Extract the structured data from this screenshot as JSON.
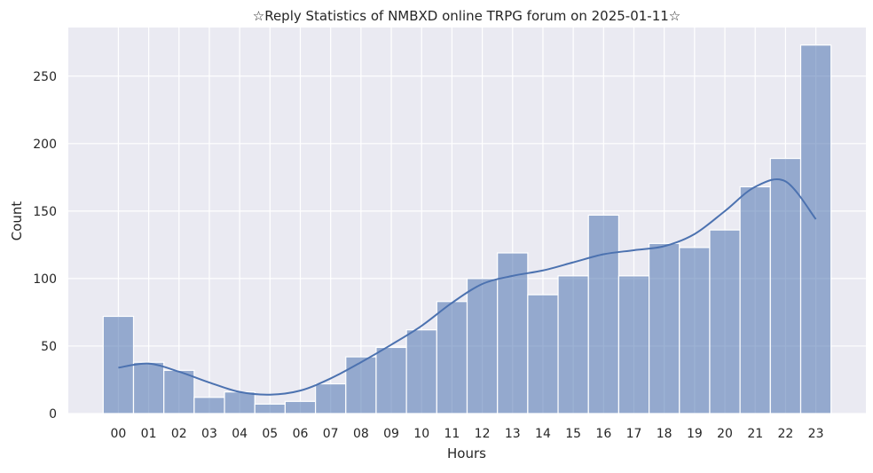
{
  "chart_data": {
    "type": "bar",
    "title": "☆Reply Statistics of NMBXD online TRPG forum on 2025-01-11☆",
    "xlabel": "Hours",
    "ylabel": "Count",
    "categories": [
      "00",
      "01",
      "02",
      "03",
      "04",
      "05",
      "06",
      "07",
      "08",
      "09",
      "10",
      "11",
      "12",
      "13",
      "14",
      "15",
      "16",
      "17",
      "18",
      "19",
      "20",
      "21",
      "22",
      "23"
    ],
    "values": [
      72,
      38,
      32,
      12,
      16,
      7,
      9,
      22,
      42,
      49,
      62,
      83,
      100,
      119,
      88,
      102,
      147,
      102,
      126,
      123,
      136,
      168,
      189,
      273
    ],
    "kde": [
      34,
      37,
      31,
      23,
      16,
      14,
      17,
      26,
      38,
      51,
      65,
      82,
      96,
      102,
      106,
      112,
      118,
      121,
      124,
      133,
      150,
      168,
      172,
      144
    ],
    "yticks": [
      0,
      50,
      100,
      150,
      200,
      250
    ],
    "ylim": [
      0,
      286
    ],
    "xlim": [
      -1.65,
      24.65
    ],
    "grid": true,
    "colors": {
      "bar": "#4c72b0",
      "background": "#eaeaf2",
      "grid": "#ffffff"
    }
  }
}
